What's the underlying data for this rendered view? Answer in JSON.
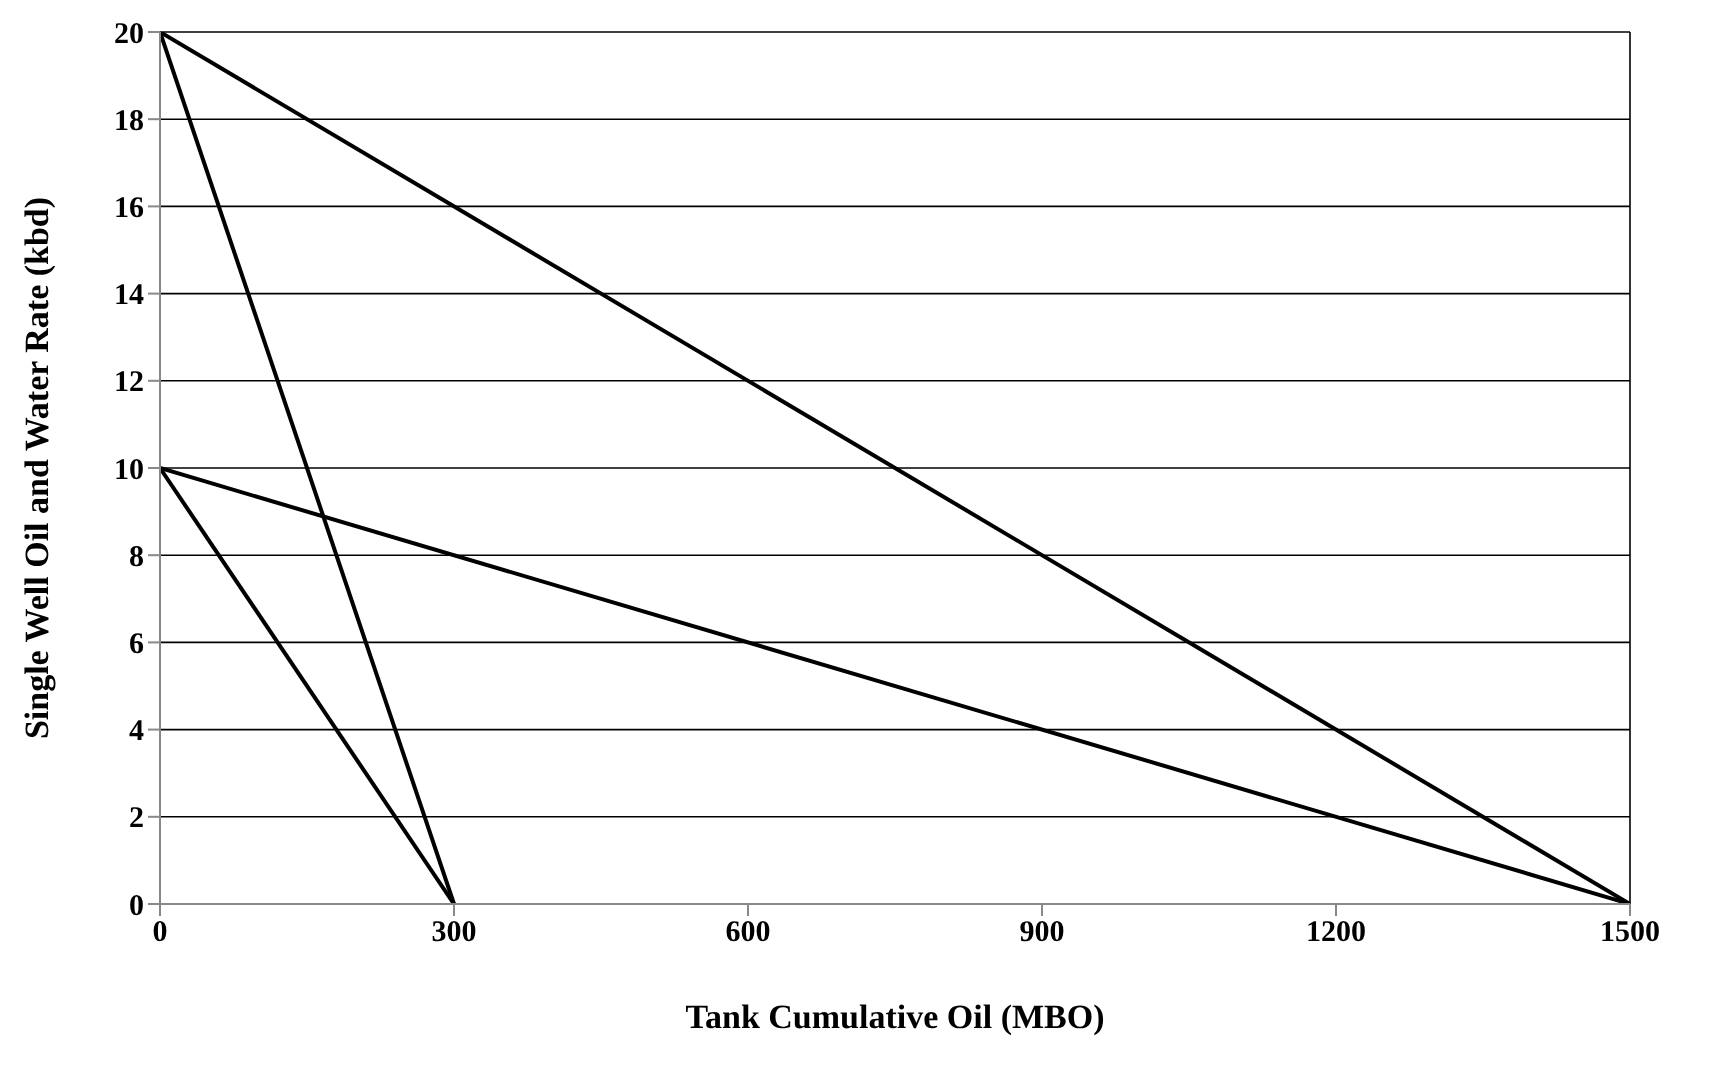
{
  "chart_data": {
    "type": "line",
    "xlabel": "Tank Cumulative Oil (MBO)",
    "ylabel": "Single Well Oil and Water Rate (kbd)",
    "series": [
      {
        "color": "#000000",
        "x": [
          0,
          1500
        ],
        "values": [
          20,
          0
        ]
      },
      {
        "color": "#000000",
        "x": [
          0,
          300
        ],
        "values": [
          20,
          0
        ]
      },
      {
        "color": "#000000",
        "x": [
          0,
          1500
        ],
        "values": [
          10,
          0
        ]
      },
      {
        "color": "#000000",
        "x": [
          0,
          300
        ],
        "values": [
          10,
          0
        ]
      }
    ],
    "xlim": [
      0,
      1500
    ],
    "xticks": [
      0,
      300,
      600,
      900,
      1200,
      1500
    ],
    "ylim": [
      0,
      20
    ],
    "yticks": [
      0,
      2,
      4,
      6,
      8,
      10,
      12,
      14,
      16,
      18,
      20
    ],
    "grid": "y",
    "legend": false,
    "marker": "none",
    "line_style": "solid"
  }
}
